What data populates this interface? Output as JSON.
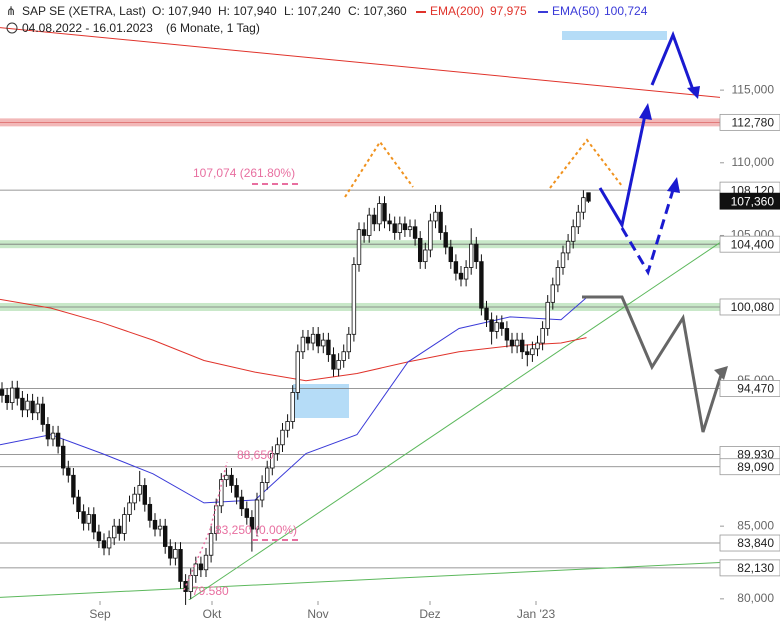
{
  "chart_data": {
    "type": "candlestick",
    "header": {
      "instrument": "SAP SE (XETRA, Last)",
      "open": "O: 107,940",
      "high": "H: 107,940",
      "low": "L: 107,240",
      "close": "C: 107,360",
      "ema200_label": "EMA(200)",
      "ema200_value": "97,975",
      "ema50_label": "EMA(50)",
      "ema50_value": "100,724",
      "period": "04.08.2022 - 16.01.2023",
      "span": "(6 Monate, 1 Tag)"
    },
    "ylim": [
      78.2,
      121.2
    ],
    "yticks": [
      {
        "value": 115,
        "label": "115,000"
      },
      {
        "value": 110,
        "label": "110,000"
      },
      {
        "value": 105,
        "label": "105,000"
      },
      {
        "value": 95,
        "label": "95,000"
      },
      {
        "value": 85,
        "label": "85,000"
      },
      {
        "value": 80,
        "label": "80,000"
      }
    ],
    "xtick_labels": [
      "Sep",
      "Okt",
      "Nov",
      "Dez",
      "Jan '23"
    ],
    "up_color": "#ffffff",
    "down_color": "#111111",
    "candles": [
      [
        94.4,
        94.9,
        93.5,
        94.0
      ],
      [
        94.0,
        94.5,
        93.0,
        93.5
      ],
      [
        93.5,
        95.0,
        93.0,
        94.5
      ],
      [
        94.5,
        95.0,
        93.3,
        93.8
      ],
      [
        93.8,
        94.3,
        92.5,
        93.0
      ],
      [
        93.0,
        94.1,
        92.5,
        93.6
      ],
      [
        93.6,
        94.1,
        92.3,
        92.8
      ],
      [
        92.8,
        93.9,
        92.3,
        93.4
      ],
      [
        93.4,
        93.9,
        91.5,
        92.0
      ],
      [
        92.0,
        92.5,
        90.5,
        91.0
      ],
      [
        91.0,
        91.9,
        90.5,
        91.4
      ],
      [
        91.4,
        91.9,
        90.0,
        90.5
      ],
      [
        90.5,
        91.0,
        88.5,
        89.0
      ],
      [
        89.0,
        89.5,
        88.0,
        88.5
      ],
      [
        88.5,
        89.0,
        86.5,
        87.0
      ],
      [
        87.0,
        87.5,
        85.5,
        86.0
      ],
      [
        86.0,
        86.5,
        84.7,
        85.2
      ],
      [
        85.2,
        86.3,
        84.7,
        85.8
      ],
      [
        85.8,
        86.3,
        84.1,
        84.6
      ],
      [
        84.6,
        85.1,
        83.5,
        84.0
      ],
      [
        84.0,
        84.5,
        83.0,
        83.5
      ],
      [
        83.5,
        84.7,
        83.0,
        84.2
      ],
      [
        84.2,
        85.5,
        83.7,
        85.0
      ],
      [
        85.0,
        85.5,
        84.0,
        84.5
      ],
      [
        84.5,
        86.3,
        84.0,
        85.8
      ],
      [
        85.8,
        87.1,
        85.3,
        86.6
      ],
      [
        86.6,
        87.7,
        86.1,
        87.2
      ],
      [
        87.2,
        88.8,
        86.7,
        87.8
      ],
      [
        87.8,
        88.3,
        86.0,
        86.5
      ],
      [
        86.5,
        87.0,
        84.9,
        85.4
      ],
      [
        85.4,
        85.9,
        84.3,
        84.8
      ],
      [
        84.8,
        85.5,
        84.3,
        85.0
      ],
      [
        85.0,
        85.5,
        83.1,
        83.6
      ],
      [
        83.6,
        84.1,
        82.3,
        82.8
      ],
      [
        82.8,
        83.9,
        82.3,
        83.4
      ],
      [
        83.4,
        83.9,
        80.7,
        81.2
      ],
      [
        81.2,
        81.7,
        79.58,
        80.5
      ],
      [
        80.5,
        82.1,
        80.0,
        81.6
      ],
      [
        81.6,
        82.9,
        81.1,
        82.4
      ],
      [
        82.4,
        82.9,
        81.5,
        82.0
      ],
      [
        82.0,
        83.5,
        81.5,
        83.0
      ],
      [
        83.0,
        85.0,
        82.5,
        84.5
      ],
      [
        84.5,
        86.9,
        84.0,
        86.4
      ],
      [
        86.4,
        88.65,
        85.9,
        88.2
      ],
      [
        88.2,
        89.0,
        87.7,
        88.5
      ],
      [
        88.5,
        89.0,
        87.3,
        87.8
      ],
      [
        87.8,
        88.3,
        86.5,
        87.0
      ],
      [
        87.0,
        87.5,
        85.7,
        86.2
      ],
      [
        86.2,
        86.7,
        85.1,
        85.6
      ],
      [
        85.6,
        86.1,
        83.25,
        84.8
      ],
      [
        84.8,
        87.3,
        84.3,
        86.8
      ],
      [
        86.8,
        88.5,
        86.3,
        88.0
      ],
      [
        88.0,
        89.5,
        87.5,
        89.0
      ],
      [
        89.0,
        90.5,
        88.5,
        90.0
      ],
      [
        90.0,
        91.1,
        89.5,
        90.6
      ],
      [
        90.6,
        92.1,
        90.1,
        91.6
      ],
      [
        91.6,
        92.7,
        91.1,
        92.2
      ],
      [
        92.2,
        94.7,
        91.7,
        94.2
      ],
      [
        94.2,
        97.5,
        93.7,
        97.0
      ],
      [
        97.0,
        98.5,
        96.5,
        98.0
      ],
      [
        98.0,
        98.5,
        97.1,
        97.6
      ],
      [
        97.6,
        98.7,
        97.1,
        98.2
      ],
      [
        98.2,
        98.7,
        96.9,
        97.4
      ],
      [
        97.4,
        98.3,
        96.9,
        97.8
      ],
      [
        97.8,
        98.3,
        96.3,
        96.8
      ],
      [
        96.8,
        97.3,
        95.3,
        95.8
      ],
      [
        95.8,
        96.9,
        95.3,
        96.4
      ],
      [
        96.4,
        97.5,
        95.9,
        97.0
      ],
      [
        97.0,
        98.7,
        96.5,
        98.2
      ],
      [
        98.2,
        103.5,
        97.7,
        103.0
      ],
      [
        103.0,
        105.9,
        102.5,
        105.4
      ],
      [
        105.4,
        105.9,
        104.5,
        105.0
      ],
      [
        105.0,
        106.9,
        104.5,
        106.4
      ],
      [
        106.4,
        106.9,
        105.3,
        105.8
      ],
      [
        105.8,
        107.7,
        105.3,
        107.2
      ],
      [
        107.2,
        107.7,
        105.5,
        106.0
      ],
      [
        106.0,
        106.5,
        105.3,
        105.8
      ],
      [
        105.8,
        106.3,
        104.7,
        105.2
      ],
      [
        105.2,
        106.3,
        104.7,
        105.8
      ],
      [
        105.8,
        106.3,
        104.9,
        105.4
      ],
      [
        105.4,
        106.1,
        104.9,
        105.6
      ],
      [
        105.6,
        106.1,
        104.3,
        104.8
      ],
      [
        104.8,
        105.3,
        102.7,
        103.2
      ],
      [
        103.2,
        104.5,
        102.7,
        104.0
      ],
      [
        104.0,
        106.5,
        103.5,
        106.0
      ],
      [
        106.0,
        107.1,
        105.5,
        106.6
      ],
      [
        106.6,
        107.1,
        104.7,
        105.2
      ],
      [
        105.2,
        105.7,
        103.7,
        104.2
      ],
      [
        104.2,
        104.7,
        102.7,
        103.2
      ],
      [
        103.2,
        103.7,
        101.9,
        102.4
      ],
      [
        102.4,
        102.9,
        101.5,
        102.0
      ],
      [
        102.0,
        103.3,
        101.5,
        102.8
      ],
      [
        102.8,
        105.5,
        102.3,
        104.4
      ],
      [
        104.4,
        104.9,
        102.7,
        103.2
      ],
      [
        103.2,
        103.7,
        99.5,
        100.0
      ],
      [
        100.0,
        100.5,
        98.7,
        99.2
      ],
      [
        99.2,
        99.7,
        97.5,
        98.4
      ],
      [
        98.4,
        99.5,
        97.9,
        99.0
      ],
      [
        99.0,
        99.5,
        98.1,
        98.6
      ],
      [
        98.6,
        99.1,
        97.3,
        97.8
      ],
      [
        97.8,
        98.3,
        96.9,
        97.4
      ],
      [
        97.4,
        98.3,
        96.9,
        97.8
      ],
      [
        97.8,
        98.3,
        96.5,
        97.0
      ],
      [
        97.0,
        97.5,
        96.0,
        96.8
      ],
      [
        96.8,
        97.7,
        96.3,
        97.2
      ],
      [
        97.2,
        98.1,
        96.7,
        97.6
      ],
      [
        97.6,
        99.1,
        97.1,
        98.6
      ],
      [
        98.6,
        100.9,
        98.1,
        100.4
      ],
      [
        100.4,
        102.1,
        99.9,
        101.6
      ],
      [
        101.6,
        103.3,
        101.1,
        102.8
      ],
      [
        102.8,
        104.3,
        102.3,
        103.8
      ],
      [
        103.8,
        105.1,
        103.3,
        104.6
      ],
      [
        104.6,
        106.1,
        104.1,
        105.6
      ],
      [
        105.6,
        107.1,
        105.1,
        106.6
      ],
      [
        106.6,
        108.1,
        106.1,
        107.6
      ],
      [
        107.94,
        107.94,
        107.24,
        107.36
      ]
    ],
    "series": [
      {
        "name": "EMA(200)",
        "color": "#e0332b",
        "x": [
          0,
          10,
          20,
          30,
          40,
          50,
          60,
          70,
          80,
          90,
          100,
          110,
          115
        ],
        "values": [
          100.6,
          100.0,
          99.0,
          97.8,
          96.4,
          95.6,
          95.0,
          95.5,
          96.3,
          97.0,
          97.4,
          97.6,
          97.975
        ]
      },
      {
        "name": "EMA(50)",
        "color": "#3a3ad8",
        "x": [
          0,
          10,
          20,
          30,
          40,
          50,
          60,
          70,
          80,
          90,
          100,
          110,
          115
        ],
        "values": [
          90.6,
          91.3,
          90.0,
          88.6,
          86.6,
          86.8,
          90.0,
          91.3,
          96.3,
          98.6,
          99.4,
          99.2,
          100.724
        ]
      }
    ],
    "trendlines": [
      {
        "color": "#e0332b",
        "x": [
          0,
          153
        ],
        "values": [
          119.3,
          114.1
        ]
      },
      {
        "color": "#5cb85c",
        "x": [
          35.7,
          153
        ],
        "values": [
          79.6,
          107.3
        ]
      },
      {
        "color": "#5cb85c",
        "x": [
          0,
          153
        ],
        "values": [
          80.1,
          82.7
        ]
      }
    ],
    "levels": [
      {
        "value": 112.78,
        "label": "112,780",
        "band": "#f2b8b8"
      },
      {
        "value": 108.12,
        "label": "108,120"
      },
      {
        "value": 107.36,
        "label": "107,360",
        "current": true
      },
      {
        "value": 104.4,
        "label": "104,400",
        "band": "#c8e8c8"
      },
      {
        "value": 100.08,
        "label": "100,080",
        "band": "#c8e8c8"
      },
      {
        "value": 94.47,
        "label": "94,470"
      },
      {
        "value": 89.93,
        "label": "89,930"
      },
      {
        "value": 89.09,
        "label": "89,090"
      },
      {
        "value": 83.84,
        "label": "83,840"
      },
      {
        "value": 82.13,
        "label": "82,130"
      }
    ],
    "annotations": {
      "fib_top": "107,074 (261.80%)",
      "fib_mid": "88,650",
      "fib_zero": "83,250 (0.00%)",
      "low": "79.580"
    }
  }
}
